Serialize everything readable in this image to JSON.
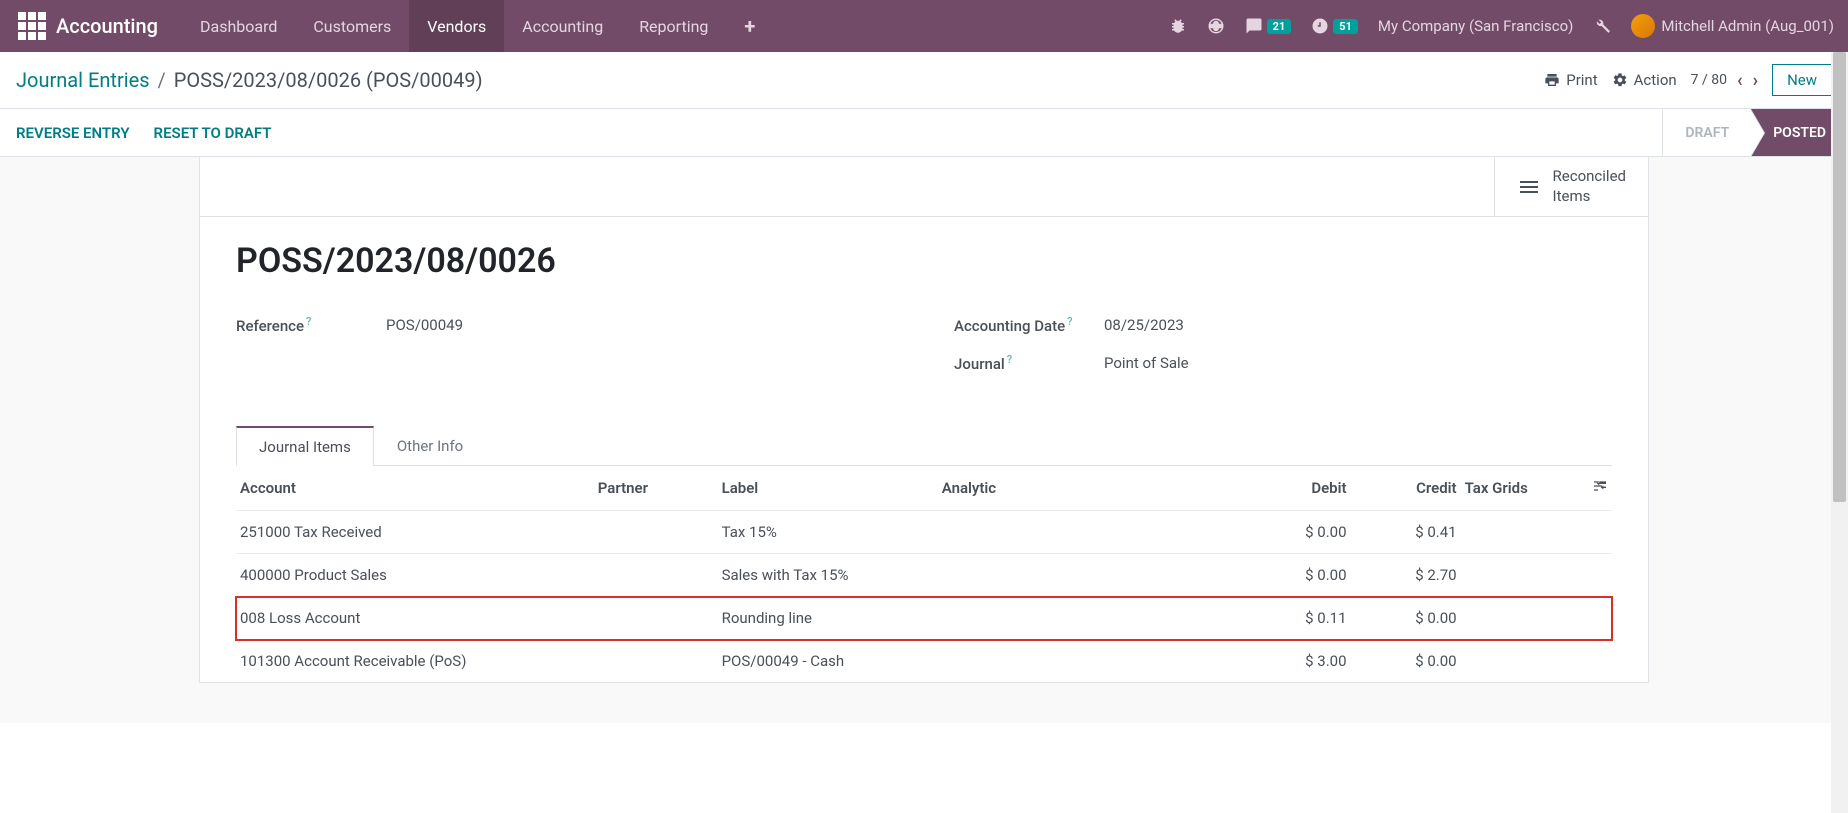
{
  "navbar": {
    "brand": "Accounting",
    "menu": [
      {
        "label": "Dashboard",
        "active": false
      },
      {
        "label": "Customers",
        "active": false
      },
      {
        "label": "Vendors",
        "active": true
      },
      {
        "label": "Accounting",
        "active": false
      },
      {
        "label": "Reporting",
        "active": false
      }
    ],
    "messages_badge": "21",
    "activities_badge": "51",
    "company": "My Company (San Francisco)",
    "user": "Mitchell Admin (Aug_001)"
  },
  "control_panel": {
    "breadcrumb_root": "Journal Entries",
    "breadcrumb_current": "POSS/2023/08/0026 (POS/00049)",
    "print": "Print",
    "action": "Action",
    "pager": "7 / 80",
    "new_btn": "New"
  },
  "status": {
    "reverse": "REVERSE ENTRY",
    "reset": "RESET TO DRAFT",
    "stages": [
      {
        "label": "DRAFT",
        "active": false
      },
      {
        "label": "POSTED",
        "active": true
      }
    ]
  },
  "stat_button": {
    "line1": "Reconciled",
    "line2": "Items"
  },
  "entry": {
    "title": "POSS/2023/08/0026",
    "reference_label": "Reference",
    "reference_value": "POS/00049",
    "date_label": "Accounting Date",
    "date_value": "08/25/2023",
    "journal_label": "Journal",
    "journal_value": "Point of Sale"
  },
  "tabs": [
    {
      "label": "Journal Items",
      "active": true
    },
    {
      "label": "Other Info",
      "active": false
    }
  ],
  "table": {
    "headers": {
      "account": "Account",
      "partner": "Partner",
      "label": "Label",
      "analytic": "Analytic",
      "debit": "Debit",
      "credit": "Credit",
      "taxgrids": "Tax Grids"
    },
    "rows": [
      {
        "account": "251000 Tax Received",
        "partner": "",
        "label": "Tax 15%",
        "analytic": "",
        "debit": "$ 0.00",
        "credit": "$ 0.41",
        "highlight": false
      },
      {
        "account": "400000 Product Sales",
        "partner": "",
        "label": "Sales with Tax 15%",
        "analytic": "",
        "debit": "$ 0.00",
        "credit": "$ 2.70",
        "highlight": false
      },
      {
        "account": "008 Loss Account",
        "partner": "",
        "label": "Rounding line",
        "analytic": "",
        "debit": "$ 0.11",
        "credit": "$ 0.00",
        "highlight": true
      },
      {
        "account": "101300 Account Receivable (PoS)",
        "partner": "",
        "label": "POS/00049 - Cash",
        "analytic": "",
        "debit": "$ 3.00",
        "credit": "$ 0.00",
        "highlight": false
      }
    ]
  }
}
